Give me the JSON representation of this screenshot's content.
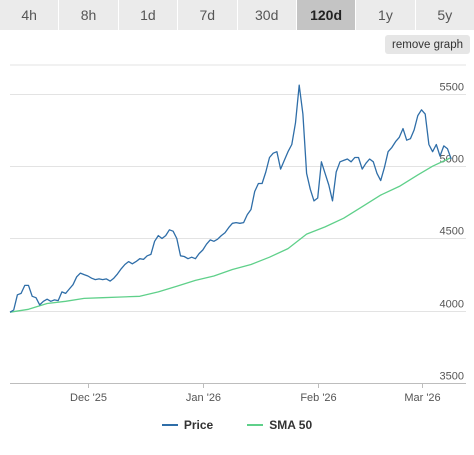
{
  "ranges": {
    "items": [
      "4h",
      "8h",
      "1d",
      "7d",
      "30d",
      "120d",
      "1y",
      "5y"
    ],
    "active": "120d"
  },
  "remove_graph_label": "remove graph",
  "colors": {
    "price": "#2f6ea8",
    "sma": "#5fd08a",
    "grid": "#e3e3e3",
    "axis": "#bdbdbd",
    "tick_text": "#555555"
  },
  "chart_data": {
    "type": "line",
    "title": "",
    "xlabel": "",
    "ylabel": "",
    "ylim": [
      3500,
      5700
    ],
    "x_domain": [
      "2025-11-10",
      "2026-03-13"
    ],
    "y_ticks": [
      3500,
      4000,
      4500,
      5000,
      5500
    ],
    "x_ticks": [
      {
        "date": "2025-12-01",
        "label": "Dec '25"
      },
      {
        "date": "2026-01-01",
        "label": "Jan '26"
      },
      {
        "date": "2026-02-01",
        "label": "Feb '26"
      },
      {
        "date": "2026-03-01",
        "label": "Mar '26"
      }
    ],
    "grid": true,
    "legend_position": "bottom",
    "series": [
      {
        "name": "Price",
        "color": "#2f6ea8",
        "points": [
          [
            "2025-11-10",
            3990
          ],
          [
            "2025-11-11",
            4005
          ],
          [
            "2025-11-12",
            4110
          ],
          [
            "2025-11-13",
            4120
          ],
          [
            "2025-11-14",
            4175
          ],
          [
            "2025-11-15",
            4175
          ],
          [
            "2025-11-16",
            4100
          ],
          [
            "2025-11-17",
            4090
          ],
          [
            "2025-11-18",
            4040
          ],
          [
            "2025-11-19",
            4065
          ],
          [
            "2025-11-20",
            4080
          ],
          [
            "2025-11-21",
            4065
          ],
          [
            "2025-11-22",
            4075
          ],
          [
            "2025-11-23",
            4070
          ],
          [
            "2025-11-24",
            4130
          ],
          [
            "2025-11-25",
            4120
          ],
          [
            "2025-11-26",
            4150
          ],
          [
            "2025-11-27",
            4180
          ],
          [
            "2025-11-28",
            4235
          ],
          [
            "2025-11-29",
            4260
          ],
          [
            "2025-11-30",
            4250
          ],
          [
            "2025-12-01",
            4240
          ],
          [
            "2025-12-02",
            4225
          ],
          [
            "2025-12-03",
            4215
          ],
          [
            "2025-12-04",
            4220
          ],
          [
            "2025-12-05",
            4215
          ],
          [
            "2025-12-06",
            4220
          ],
          [
            "2025-12-07",
            4205
          ],
          [
            "2025-12-08",
            4225
          ],
          [
            "2025-12-09",
            4255
          ],
          [
            "2025-12-10",
            4290
          ],
          [
            "2025-12-11",
            4320
          ],
          [
            "2025-12-12",
            4340
          ],
          [
            "2025-12-13",
            4325
          ],
          [
            "2025-12-14",
            4340
          ],
          [
            "2025-12-15",
            4360
          ],
          [
            "2025-12-16",
            4355
          ],
          [
            "2025-12-17",
            4380
          ],
          [
            "2025-12-18",
            4390
          ],
          [
            "2025-12-19",
            4480
          ],
          [
            "2025-12-20",
            4520
          ],
          [
            "2025-12-21",
            4500
          ],
          [
            "2025-12-22",
            4520
          ],
          [
            "2025-12-23",
            4560
          ],
          [
            "2025-12-24",
            4550
          ],
          [
            "2025-12-25",
            4500
          ],
          [
            "2025-12-26",
            4380
          ],
          [
            "2025-12-27",
            4375
          ],
          [
            "2025-12-28",
            4360
          ],
          [
            "2025-12-29",
            4370
          ],
          [
            "2025-12-30",
            4360
          ],
          [
            "2025-12-31",
            4395
          ],
          [
            "2026-01-01",
            4420
          ],
          [
            "2026-01-02",
            4460
          ],
          [
            "2026-01-03",
            4490
          ],
          [
            "2026-01-04",
            4480
          ],
          [
            "2026-01-05",
            4495
          ],
          [
            "2026-01-06",
            4520
          ],
          [
            "2026-01-07",
            4540
          ],
          [
            "2026-01-08",
            4575
          ],
          [
            "2026-01-09",
            4605
          ],
          [
            "2026-01-10",
            4610
          ],
          [
            "2026-01-11",
            4605
          ],
          [
            "2026-01-12",
            4610
          ],
          [
            "2026-01-13",
            4665
          ],
          [
            "2026-01-14",
            4700
          ],
          [
            "2026-01-15",
            4825
          ],
          [
            "2026-01-16",
            4880
          ],
          [
            "2026-01-17",
            4880
          ],
          [
            "2026-01-18",
            4960
          ],
          [
            "2026-01-19",
            5060
          ],
          [
            "2026-01-20",
            5090
          ],
          [
            "2026-01-21",
            5100
          ],
          [
            "2026-01-22",
            4980
          ],
          [
            "2026-01-23",
            5040
          ],
          [
            "2026-01-24",
            5100
          ],
          [
            "2026-01-25",
            5150
          ],
          [
            "2026-01-26",
            5300
          ],
          [
            "2026-01-27",
            5560
          ],
          [
            "2026-01-28",
            5360
          ],
          [
            "2026-01-29",
            4950
          ],
          [
            "2026-01-30",
            4840
          ],
          [
            "2026-01-31",
            4760
          ],
          [
            "2026-02-01",
            4780
          ],
          [
            "2026-02-02",
            5030
          ],
          [
            "2026-02-03",
            4950
          ],
          [
            "2026-02-04",
            4870
          ],
          [
            "2026-02-05",
            4760
          ],
          [
            "2026-02-06",
            4960
          ],
          [
            "2026-02-07",
            5030
          ],
          [
            "2026-02-08",
            5040
          ],
          [
            "2026-02-09",
            5050
          ],
          [
            "2026-02-10",
            5030
          ],
          [
            "2026-02-11",
            5060
          ],
          [
            "2026-02-12",
            5060
          ],
          [
            "2026-02-13",
            4980
          ],
          [
            "2026-02-14",
            5020
          ],
          [
            "2026-02-15",
            5050
          ],
          [
            "2026-02-16",
            5030
          ],
          [
            "2026-02-17",
            4950
          ],
          [
            "2026-02-18",
            4900
          ],
          [
            "2026-02-19",
            4990
          ],
          [
            "2026-02-20",
            5100
          ],
          [
            "2026-02-21",
            5130
          ],
          [
            "2026-02-22",
            5170
          ],
          [
            "2026-02-23",
            5200
          ],
          [
            "2026-02-24",
            5260
          ],
          [
            "2026-02-25",
            5180
          ],
          [
            "2026-02-26",
            5190
          ],
          [
            "2026-02-27",
            5250
          ],
          [
            "2026-02-28",
            5350
          ],
          [
            "2026-03-01",
            5390
          ],
          [
            "2026-03-02",
            5360
          ],
          [
            "2026-03-03",
            5150
          ],
          [
            "2026-03-04",
            5100
          ],
          [
            "2026-03-05",
            5150
          ],
          [
            "2026-03-06",
            5070
          ],
          [
            "2026-03-07",
            5140
          ],
          [
            "2026-03-08",
            5120
          ],
          [
            "2026-03-09",
            5050
          ]
        ]
      },
      {
        "name": "SMA 50",
        "color": "#5fd08a",
        "points": [
          [
            "2025-11-10",
            3990
          ],
          [
            "2025-11-15",
            4010
          ],
          [
            "2025-11-20",
            4050
          ],
          [
            "2025-11-25",
            4065
          ],
          [
            "2025-11-30",
            4085
          ],
          [
            "2025-12-05",
            4090
          ],
          [
            "2025-12-10",
            4095
          ],
          [
            "2025-12-15",
            4100
          ],
          [
            "2025-12-20",
            4130
          ],
          [
            "2025-12-25",
            4170
          ],
          [
            "2025-12-30",
            4210
          ],
          [
            "2026-01-04",
            4240
          ],
          [
            "2026-01-09",
            4285
          ],
          [
            "2026-01-14",
            4320
          ],
          [
            "2026-01-19",
            4370
          ],
          [
            "2026-01-24",
            4430
          ],
          [
            "2026-01-29",
            4530
          ],
          [
            "2026-02-03",
            4580
          ],
          [
            "2026-02-08",
            4640
          ],
          [
            "2026-02-13",
            4720
          ],
          [
            "2026-02-18",
            4800
          ],
          [
            "2026-02-23",
            4860
          ],
          [
            "2026-02-28",
            4940
          ],
          [
            "2026-03-04",
            5000
          ],
          [
            "2026-03-09",
            5060
          ]
        ]
      }
    ]
  }
}
